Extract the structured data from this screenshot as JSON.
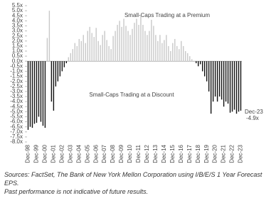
{
  "chart_data": {
    "type": "bar",
    "categories": [
      "Dec-98",
      null,
      null,
      null,
      "Dec-99",
      null,
      null,
      null,
      "Dec-00",
      null,
      null,
      null,
      "Dec-01",
      null,
      null,
      null,
      "Dec-02",
      null,
      null,
      null,
      "Dec-03",
      null,
      null,
      null,
      "Dec-04",
      null,
      null,
      null,
      "Dec-05",
      null,
      null,
      null,
      "Dec-06",
      null,
      null,
      null,
      "Dec-07",
      null,
      null,
      null,
      "Dec-08",
      null,
      null,
      null,
      "Dec-09",
      null,
      null,
      null,
      "Dec-10",
      null,
      null,
      null,
      "Dec-11",
      null,
      null,
      null,
      "Dec-12",
      null,
      null,
      null,
      "Dec-13",
      null,
      null,
      null,
      "Dec-14",
      null,
      null,
      null,
      "Dec-15",
      null,
      null,
      null,
      "Dec-16",
      null,
      null,
      null,
      "Dec-17",
      null,
      null,
      null,
      "Dec-18",
      null,
      null,
      null,
      "Dec-19",
      null,
      null,
      null,
      "Dec-20",
      null,
      null,
      null,
      "Dec-21",
      null,
      null,
      null,
      "Dec-22",
      null,
      null,
      null,
      "Dec-23"
    ],
    "values": [
      -6.8,
      -6.5,
      -6.6,
      -6.2,
      -6.1,
      -5.5,
      -6.0,
      -6.4,
      -6.6,
      2.3,
      5.0,
      -4.0,
      -4.9,
      -2.5,
      -2.0,
      -1.5,
      -1.0,
      -0.6,
      -0.2,
      0.4,
      0.8,
      1.2,
      1.8,
      1.5,
      2.2,
      2.0,
      2.6,
      1.8,
      3.0,
      3.4,
      2.8,
      2.4,
      3.3,
      2.0,
      1.6,
      2.6,
      3.0,
      2.1,
      1.5,
      1.2,
      2.5,
      3.0,
      3.6,
      4.0,
      3.4,
      4.2,
      3.5,
      3.0,
      2.6,
      3.2,
      3.8,
      4.2,
      3.6,
      4.5,
      3.6,
      3.0,
      2.6,
      3.0,
      4.1,
      3.5,
      2.6,
      2.0,
      2.6,
      1.8,
      2.1,
      2.6,
      1.5,
      1.0,
      1.8,
      2.2,
      1.5,
      1.2,
      2.0,
      1.5,
      1.0,
      0.8,
      0.5,
      0.2,
      0.0,
      -0.2,
      -0.5,
      -0.3,
      -1.0,
      -1.5,
      -2.0,
      -3.0,
      -5.2,
      -4.0,
      -3.5,
      -4.0,
      -3.5,
      -3.8,
      -4.5,
      -4.0,
      -4.2,
      -5.1,
      -5.0,
      -4.8,
      -5.2,
      -5.0,
      -4.9
    ],
    "positive_color": "#c8c8c8",
    "negative_color": "#111111",
    "ylim": [
      -8.0,
      5.5
    ],
    "yticks": [
      {
        "value": 5.5,
        "label": "5.5x"
      },
      {
        "value": 5.0,
        "label": "5.0x"
      },
      {
        "value": 4.5,
        "label": "4.5x"
      },
      {
        "value": 4.0,
        "label": "4.0x"
      },
      {
        "value": 3.5,
        "label": "3.5x"
      },
      {
        "value": 3.0,
        "label": "3.0x"
      },
      {
        "value": 2.5,
        "label": "2.5x"
      },
      {
        "value": 2.0,
        "label": "2.0x"
      },
      {
        "value": 1.5,
        "label": "1.5x"
      },
      {
        "value": 1.0,
        "label": "1.0x"
      },
      {
        "value": 0.5,
        "label": "0.5x"
      },
      {
        "value": 0.0,
        "label": "0.0x"
      },
      {
        "value": -0.5,
        "label": "-0.5x"
      },
      {
        "value": -1.0,
        "label": "-1.0x"
      },
      {
        "value": -1.5,
        "label": "-1.5x"
      },
      {
        "value": -2.0,
        "label": "-2.0x"
      },
      {
        "value": -2.5,
        "label": "-2.5x"
      },
      {
        "value": -3.0,
        "label": "-3.0x"
      },
      {
        "value": -3.5,
        "label": "-3.5x"
      },
      {
        "value": -4.0,
        "label": "-4.0x"
      },
      {
        "value": -4.5,
        "label": "-4.5x"
      },
      {
        "value": -5.0,
        "label": "-5.0x"
      },
      {
        "value": -5.5,
        "label": "-5.5x"
      },
      {
        "value": -6.0,
        "label": "-6.0x"
      },
      {
        "value": -6.5,
        "label": "-6.5x"
      },
      {
        "value": -7.0,
        "label": "-7.0x"
      },
      {
        "value": -7.5,
        "label": "-7.5x"
      },
      {
        "value": -8.0,
        "label": "-8.0x"
      }
    ],
    "annotations": [
      "Small-Caps Trading at a Premium",
      "Small-Caps Trading at a Discount"
    ],
    "last_point": {
      "date": "Dec-23",
      "label": "-4.9x"
    }
  },
  "footnotes": [
    "Sources: FactSet, The Bank of New York Mellon Corporation using I/B/E/S 1 Year Forecast EPS.",
    "Past performance is not indicative of future results."
  ]
}
